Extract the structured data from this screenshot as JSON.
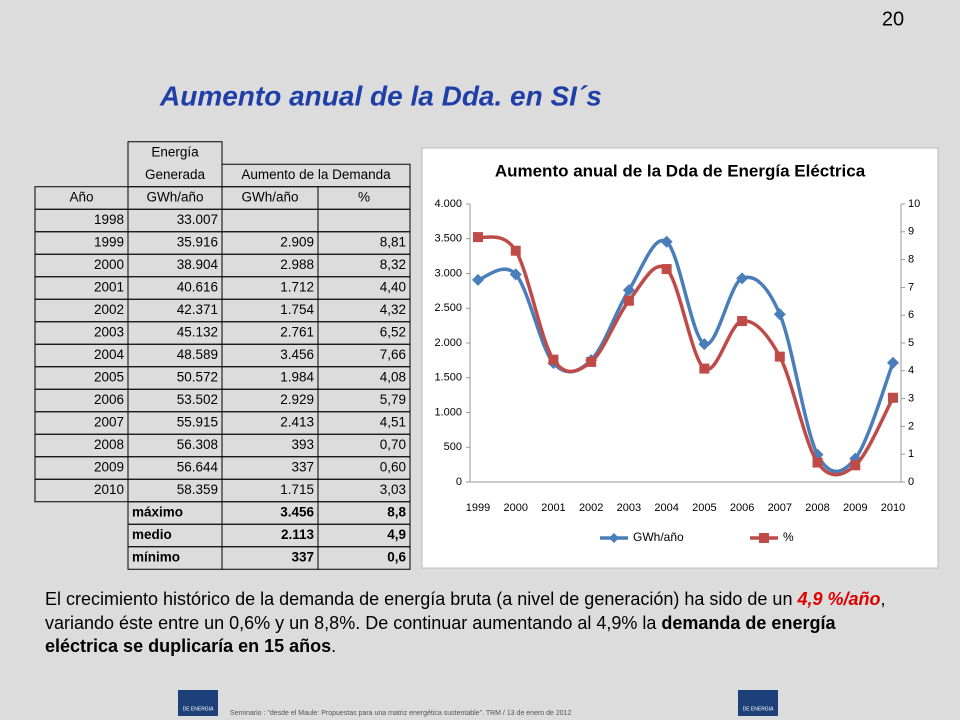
{
  "page_number": "20",
  "title": "Aumento anual de la Dda. en SI´s",
  "table": {
    "header": [
      "Energía",
      "Generada",
      "Aumento de la Demanda"
    ],
    "columns": [
      "Año",
      "GWh/año",
      "GWh/año",
      "%"
    ],
    "rows": [
      [
        "1998",
        "33.007"
      ],
      [
        "1999",
        "35.916",
        "2.909",
        "8,81"
      ],
      [
        "2000",
        "38.904",
        "2.988",
        "8,32"
      ],
      [
        "2001",
        "40.616",
        "1.712",
        "4,40"
      ],
      [
        "2002",
        "42.371",
        "1.754",
        "4,32"
      ],
      [
        "2003",
        "45.132",
        "2.761",
        "6,52"
      ],
      [
        "2004",
        "48.589",
        "3.456",
        "7,66"
      ],
      [
        "2005",
        "50.572",
        "1.984",
        "4,08"
      ],
      [
        "2006",
        "53.502",
        "2.929",
        "5,79"
      ],
      [
        "2007",
        "55.915",
        "2.413",
        "4,51"
      ],
      [
        "2008",
        "56.308",
        "393",
        "0,70"
      ],
      [
        "2009",
        "56.644",
        "337",
        "0,60"
      ],
      [
        "2010",
        "58.359",
        "1.715",
        "3,03"
      ]
    ],
    "summary": [
      [
        "máximo",
        "3.456",
        "8,8"
      ],
      [
        "medio",
        "2.113",
        "4,9"
      ],
      [
        "mínimo",
        "337",
        "0,6"
      ]
    ]
  },
  "chart_data": {
    "type": "line",
    "title": "Aumento anual de la Dda de Energía Eléctrica",
    "categories": [
      "1999",
      "2000",
      "2001",
      "2002",
      "2003",
      "2004",
      "2005",
      "2006",
      "2007",
      "2008",
      "2009",
      "2010"
    ],
    "series": [
      {
        "name": "GWh/año",
        "color": "#4a7ebb",
        "marker": "diamond",
        "values": [
          2909,
          2988,
          1712,
          1754,
          2761,
          3456,
          1984,
          2929,
          2413,
          393,
          337,
          1715
        ]
      },
      {
        "name": "%",
        "color": "#be4b48",
        "marker": "square",
        "axis": "y2",
        "values": [
          8.81,
          8.32,
          4.4,
          4.32,
          6.52,
          7.66,
          4.08,
          5.79,
          4.51,
          0.7,
          0.6,
          3.03
        ]
      }
    ],
    "ylim": [
      0,
      4000
    ],
    "yticks": [
      0,
      500,
      {
        "value": 1000,
        "label": "1.000"
      },
      {
        "value": 1500,
        "label": "1.500"
      },
      {
        "value": 2000,
        "label": "2.000"
      },
      {
        "value": 2500,
        "label": "2.500"
      },
      {
        "value": 3000,
        "label": "3.000"
      },
      {
        "value": 3500,
        "label": "3.500"
      },
      {
        "value": 4000,
        "label": "4.000"
      }
    ],
    "y2lim": [
      0,
      10
    ],
    "y2ticks": [
      0,
      1,
      2,
      3,
      4,
      5,
      6,
      7,
      8,
      9,
      10
    ],
    "smooth": true,
    "legend": "bottom"
  },
  "paragraph": [
    "El crecimiento histórico de la demanda de energía bruta (a nivel de generación) ha sido de un ",
    "4,9 %/año",
    ", variando éste entre un 0,6% y un 8,8%. De continuar aumentando al 4,9% la ",
    "demanda de energía eléctrica se duplicaría en 15 años",
    "."
  ],
  "footer": "Seminario : \"desde el Maule: Propuestas para una matriz energética sustentable\".  TRM  /  13 de enero de 2012",
  "logo_text": "DE ENERGIA"
}
